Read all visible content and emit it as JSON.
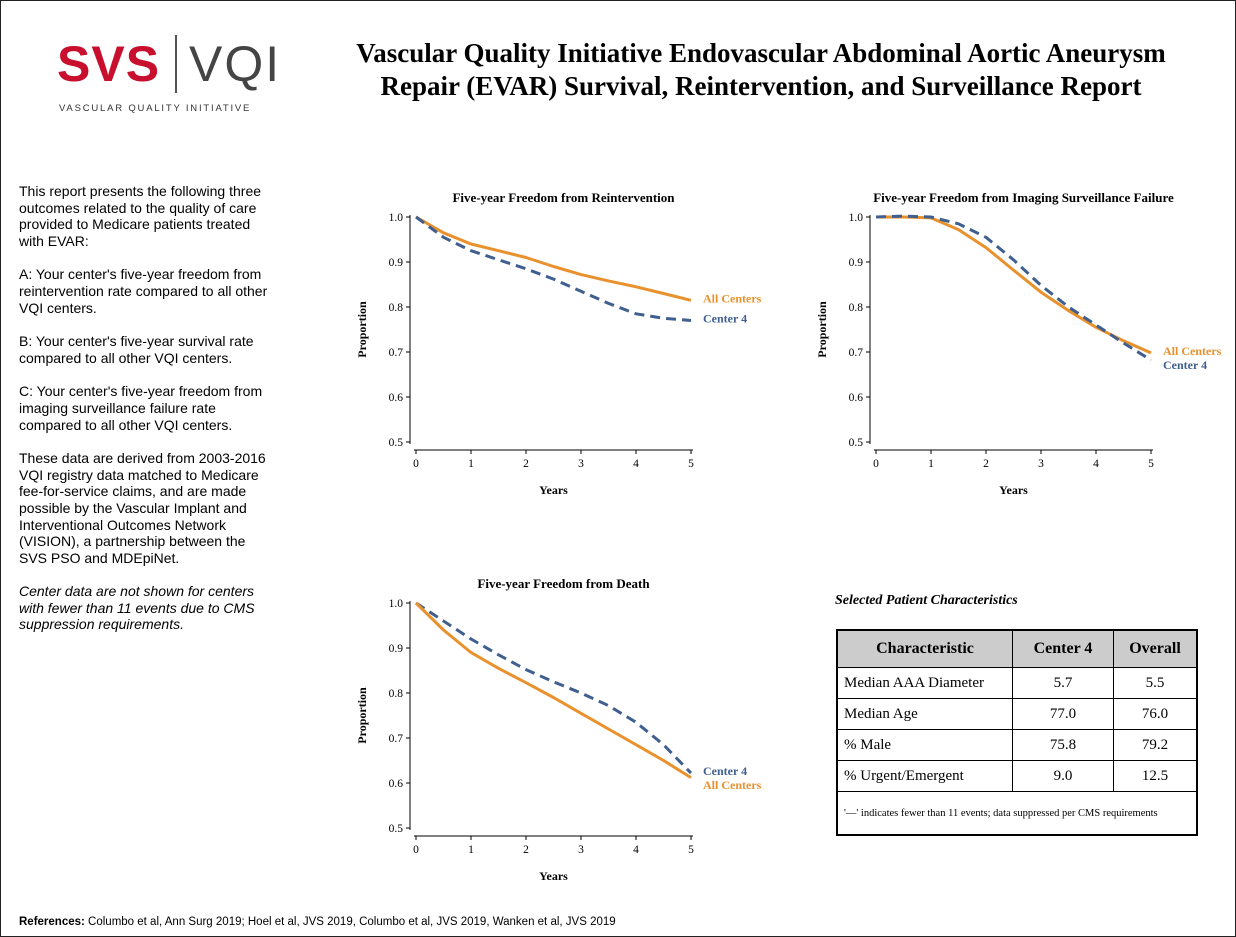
{
  "logo": {
    "svs": "SVS",
    "vqi": "VQI",
    "subtitle": "VASCULAR QUALITY INITIATIVE"
  },
  "report": {
    "title_line1": "Vascular Quality Initiative Endovascular Abdominal Aortic Aneurysm",
    "title_line2": "Repair (EVAR) Survival, Reintervention, and Surveillance Report"
  },
  "intro": {
    "p1": "This report presents the following three outcomes related to the quality of care provided to Medicare patients treated with EVAR:",
    "pA": "A: Your center's five-year freedom from reintervention rate compared to all other VQI centers.",
    "pB": "B: Your center's five-year survival rate compared to all other VQI centers.",
    "pC": "C: Your center's five-year freedom from imaging surveillance failure rate compared to all other VQI centers.",
    "p2": "These data are derived from 2003-2016 VQI registry data matched to Medicare fee-for-service claims, and are made possible by the Vascular Implant and Interventional Outcomes Network (VISION), a partnership between the SVS PSO and MDEpiNet.",
    "p3": "Center data are not shown for centers with fewer than 11 events due to CMS suppression requirements."
  },
  "colors": {
    "all_centers": "#e8912d",
    "center": "#3f5f8f"
  },
  "chart_data": [
    {
      "type": "line",
      "title": "Five-year Freedom from Reintervention",
      "xlabel": "Years",
      "ylabel": "Proportion",
      "xlim": [
        0,
        5
      ],
      "ylim": [
        0.5,
        1.0
      ],
      "xticks": [
        "0",
        "1",
        "2",
        "3",
        "4",
        "5"
      ],
      "yticks": [
        "0.5",
        "0.6",
        "0.7",
        "0.8",
        "0.9",
        "1.0"
      ],
      "series": [
        {
          "name": "All Centers",
          "x": [
            0,
            0.5,
            1,
            1.5,
            2,
            2.5,
            3,
            3.5,
            4,
            4.5,
            5
          ],
          "y": [
            1.0,
            0.965,
            0.94,
            0.925,
            0.91,
            0.89,
            0.872,
            0.858,
            0.845,
            0.83,
            0.815
          ]
        },
        {
          "name": "Center 4",
          "x": [
            0,
            0.5,
            1,
            1.5,
            2,
            2.5,
            3,
            3.5,
            4,
            4.5,
            5
          ],
          "y": [
            1.0,
            0.955,
            0.925,
            0.905,
            0.885,
            0.862,
            0.835,
            0.808,
            0.785,
            0.775,
            0.77
          ]
        }
      ]
    },
    {
      "type": "line",
      "title": "Five-year Freedom from Imaging Surveillance Failure",
      "xlabel": "Years",
      "ylabel": "Proportion",
      "xlim": [
        0,
        5
      ],
      "ylim": [
        0.5,
        1.0
      ],
      "xticks": [
        "0",
        "1",
        "2",
        "3",
        "4",
        "5"
      ],
      "yticks": [
        "0.5",
        "0.6",
        "0.7",
        "0.8",
        "0.9",
        "1.0"
      ],
      "series": [
        {
          "name": "All Centers",
          "x": [
            0,
            0.5,
            1,
            1.5,
            2,
            2.5,
            3,
            3.5,
            4,
            4.5,
            5
          ],
          "y": [
            1.0,
            1.0,
            0.998,
            0.972,
            0.932,
            0.882,
            0.833,
            0.792,
            0.755,
            0.725,
            0.698
          ]
        },
        {
          "name": "Center 4",
          "x": [
            0,
            0.5,
            1,
            1.5,
            2,
            2.5,
            3,
            3.5,
            4,
            4.5,
            5
          ],
          "y": [
            1.0,
            1.002,
            1.0,
            0.985,
            0.955,
            0.905,
            0.848,
            0.8,
            0.76,
            0.72,
            0.682
          ]
        }
      ]
    },
    {
      "type": "line",
      "title": "Five-year Freedom from Death",
      "xlabel": "Years",
      "ylabel": "Proportion",
      "xlim": [
        0,
        5
      ],
      "ylim": [
        0.5,
        1.0
      ],
      "xticks": [
        "0",
        "1",
        "2",
        "3",
        "4",
        "5"
      ],
      "yticks": [
        "0.5",
        "0.6",
        "0.7",
        "0.8",
        "0.9",
        "1.0"
      ],
      "series": [
        {
          "name": "Center 4",
          "x": [
            0,
            0.5,
            1,
            1.5,
            2,
            2.5,
            3,
            3.5,
            4,
            4.5,
            5
          ],
          "y": [
            1.0,
            0.96,
            0.92,
            0.885,
            0.852,
            0.825,
            0.8,
            0.772,
            0.735,
            0.685,
            0.622
          ]
        },
        {
          "name": "All Centers",
          "x": [
            0,
            0.5,
            1,
            1.5,
            2,
            2.5,
            3,
            3.5,
            4,
            4.5,
            5
          ],
          "y": [
            1.0,
            0.94,
            0.89,
            0.855,
            0.823,
            0.79,
            0.755,
            0.72,
            0.685,
            0.65,
            0.612
          ]
        }
      ]
    }
  ],
  "table": {
    "title": "Selected Patient Characteristics",
    "headers": [
      "Characteristic",
      "Center 4",
      "Overall"
    ],
    "rows": [
      [
        "Median AAA Diameter",
        "5.7",
        "5.5"
      ],
      [
        "Median Age",
        "77.0",
        "76.0"
      ],
      [
        "% Male",
        "75.8",
        "79.2"
      ],
      [
        "% Urgent/Emergent",
        "9.0",
        "12.5"
      ]
    ],
    "note": "'—' indicates fewer than 11 events; data suppressed per CMS requirements"
  },
  "references": {
    "label": "References:",
    "text": "Columbo et al, Ann Surg 2019; Hoel et al, JVS 2019, Columbo et al, JVS 2019, Wanken et al, JVS 2019"
  }
}
